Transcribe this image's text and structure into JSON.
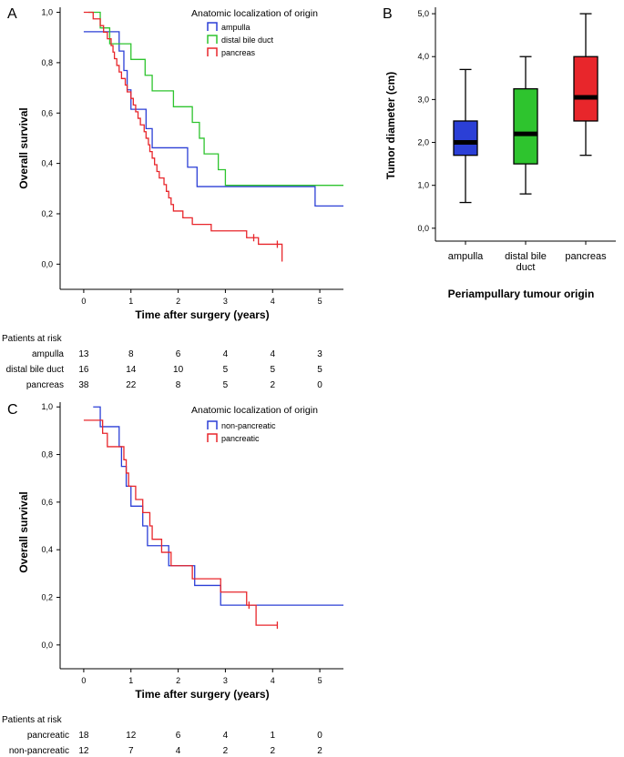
{
  "figure": {
    "panels": [
      "A",
      "B",
      "C"
    ]
  },
  "chart_data": [
    {
      "panel": "A",
      "type": "line",
      "subtype": "kaplan-meier",
      "xlabel": "Time after surgery (years)",
      "ylabel": "Overall survival",
      "xlim": [
        -0.5,
        5.5
      ],
      "ylim": [
        -0.1,
        1.02
      ],
      "xticks": [
        0,
        1,
        2,
        3,
        4,
        5
      ],
      "yticks": [
        0.0,
        0.2,
        0.4,
        0.6,
        0.8,
        1.0
      ],
      "ytick_labels": [
        "0,0",
        "0,2",
        "0,4",
        "0,6",
        "0,8",
        "1,0"
      ],
      "legend_title": "Anatomic localization of origin",
      "legend_position": "top-right",
      "series": [
        {
          "name": "ampulla",
          "color": "#2b3fd6",
          "steps": [
            [
              0,
              0.923
            ],
            [
              0.65,
              0.923
            ],
            [
              0.75,
              0.846
            ],
            [
              0.85,
              0.769
            ],
            [
              0.92,
              0.692
            ],
            [
              1.0,
              0.615
            ],
            [
              1.32,
              0.538
            ],
            [
              1.45,
              0.462
            ],
            [
              2.2,
              0.385
            ],
            [
              2.4,
              0.308
            ],
            [
              4.9,
              0.308
            ],
            [
              4.9,
              0.231
            ],
            [
              5.5,
              0.231
            ]
          ]
        },
        {
          "name": "distal bile duct",
          "color": "#2ec42e",
          "steps": [
            [
              0.1,
              1.0
            ],
            [
              0.35,
              0.938
            ],
            [
              0.55,
              0.875
            ],
            [
              1.0,
              0.813
            ],
            [
              1.3,
              0.75
            ],
            [
              1.45,
              0.688
            ],
            [
              1.9,
              0.625
            ],
            [
              2.3,
              0.563
            ],
            [
              2.45,
              0.5
            ],
            [
              2.55,
              0.438
            ],
            [
              2.85,
              0.375
            ],
            [
              3.0,
              0.313
            ],
            [
              5.5,
              0.313
            ]
          ]
        },
        {
          "name": "pancreas",
          "color": "#e8262b",
          "steps": [
            [
              0,
              1.0
            ],
            [
              0.2,
              0.974
            ],
            [
              0.35,
              0.947
            ],
            [
              0.42,
              0.921
            ],
            [
              0.5,
              0.895
            ],
            [
              0.58,
              0.868
            ],
            [
              0.62,
              0.842
            ],
            [
              0.65,
              0.816
            ],
            [
              0.7,
              0.789
            ],
            [
              0.75,
              0.763
            ],
            [
              0.8,
              0.737
            ],
            [
              0.88,
              0.711
            ],
            [
              0.92,
              0.684
            ],
            [
              1.0,
              0.658
            ],
            [
              1.05,
              0.632
            ],
            [
              1.1,
              0.605
            ],
            [
              1.15,
              0.579
            ],
            [
              1.2,
              0.553
            ],
            [
              1.28,
              0.526
            ],
            [
              1.32,
              0.5
            ],
            [
              1.37,
              0.474
            ],
            [
              1.4,
              0.447
            ],
            [
              1.45,
              0.421
            ],
            [
              1.5,
              0.395
            ],
            [
              1.55,
              0.368
            ],
            [
              1.6,
              0.342
            ],
            [
              1.7,
              0.316
            ],
            [
              1.75,
              0.289
            ],
            [
              1.8,
              0.263
            ],
            [
              1.85,
              0.237
            ],
            [
              1.9,
              0.211
            ],
            [
              2.1,
              0.184
            ],
            [
              2.3,
              0.158
            ],
            [
              2.7,
              0.132
            ],
            [
              3.45,
              0.105
            ],
            [
              3.7,
              0.079
            ],
            [
              4.2,
              0.053
            ],
            [
              4.2,
              0.01
            ]
          ],
          "censored": [
            [
              3.6,
              0.105
            ],
            [
              4.1,
              0.079
            ]
          ]
        }
      ],
      "risk_table": {
        "title": "Patients at risk",
        "times": [
          0,
          1,
          2,
          3,
          4,
          5
        ],
        "rows": [
          {
            "label": "ampulla",
            "counts": [
              "13",
              "8",
              "6",
              "4",
              "4",
              "3"
            ]
          },
          {
            "label": "distal bile duct",
            "counts": [
              "16",
              "14",
              "10",
              "5",
              "5",
              "5"
            ]
          },
          {
            "label": "pancreas",
            "counts": [
              "38",
              "22",
              "8",
              "5",
              "2",
              "0"
            ]
          }
        ]
      }
    },
    {
      "panel": "B",
      "type": "box",
      "xlabel": "Periampullary tumour origin",
      "ylabel": "Tumor diameter (cm)",
      "ylim": [
        -0.3,
        5.15
      ],
      "yticks": [
        0.0,
        1.0,
        2.0,
        3.0,
        4.0,
        5.0
      ],
      "ytick_labels": [
        "0,0",
        "1,0",
        "2,0",
        "3,0",
        "4,0",
        "5,0"
      ],
      "categories": [
        "ampulla",
        "distal bile duct",
        "pancreas"
      ],
      "category_labels": [
        [
          "ampulla"
        ],
        [
          "distal bile",
          "duct"
        ],
        [
          "pancreas"
        ]
      ],
      "boxes": [
        {
          "name": "ampulla",
          "color": "#2b3fd6",
          "min": 0.6,
          "q1": 1.7,
          "median": 2.0,
          "q3": 2.5,
          "max": 3.7
        },
        {
          "name": "distal bile duct",
          "color": "#2ec42e",
          "min": 0.8,
          "q1": 1.5,
          "median": 2.2,
          "q3": 3.25,
          "max": 4.0
        },
        {
          "name": "pancreas",
          "color": "#e8262b",
          "min": 1.7,
          "q1": 2.5,
          "median": 3.05,
          "q3": 4.0,
          "max": 5.0
        }
      ]
    },
    {
      "panel": "C",
      "type": "line",
      "subtype": "kaplan-meier",
      "xlabel": "Time after surgery (years)",
      "ylabel": "Overall survival",
      "xlim": [
        -0.5,
        5.5
      ],
      "ylim": [
        -0.1,
        1.02
      ],
      "xticks": [
        0,
        1,
        2,
        3,
        4,
        5
      ],
      "yticks": [
        0.0,
        0.2,
        0.4,
        0.6,
        0.8,
        1.0
      ],
      "ytick_labels": [
        "0,0",
        "0,2",
        "0,4",
        "0,6",
        "0,8",
        "1,0"
      ],
      "legend_title": "Anatomic localization of origin",
      "legend_position": "top-right",
      "series": [
        {
          "name": "non-pancreatic",
          "color": "#2b3fd6",
          "steps": [
            [
              0.2,
              1.0
            ],
            [
              0.35,
              0.917
            ],
            [
              0.75,
              0.833
            ],
            [
              0.8,
              0.75
            ],
            [
              0.9,
              0.667
            ],
            [
              1.0,
              0.583
            ],
            [
              1.25,
              0.5
            ],
            [
              1.35,
              0.417
            ],
            [
              1.8,
              0.333
            ],
            [
              2.35,
              0.25
            ],
            [
              2.9,
              0.167
            ],
            [
              5.5,
              0.167
            ]
          ]
        },
        {
          "name": "pancreatic",
          "color": "#e8262b",
          "steps": [
            [
              0,
              0.944
            ],
            [
              0.4,
              0.889
            ],
            [
              0.5,
              0.833
            ],
            [
              0.85,
              0.778
            ],
            [
              0.9,
              0.722
            ],
            [
              0.95,
              0.667
            ],
            [
              1.1,
              0.611
            ],
            [
              1.25,
              0.556
            ],
            [
              1.4,
              0.5
            ],
            [
              1.45,
              0.444
            ],
            [
              1.65,
              0.389
            ],
            [
              1.85,
              0.333
            ],
            [
              2.3,
              0.278
            ],
            [
              2.9,
              0.222
            ],
            [
              3.45,
              0.167
            ],
            [
              3.65,
              0.083
            ],
            [
              4.1,
              0.083
            ]
          ],
          "censored": [
            [
              3.5,
              0.167
            ],
            [
              4.1,
              0.083
            ]
          ]
        }
      ],
      "risk_table": {
        "title": "Patients at risk",
        "times": [
          0,
          1,
          2,
          3,
          4,
          5
        ],
        "rows": [
          {
            "label": "pancreatic",
            "counts": [
              "18",
              "12",
              "6",
              "4",
              "1",
              "0"
            ]
          },
          {
            "label": "non-pancreatic",
            "counts": [
              "12",
              "7",
              "4",
              "2",
              "2",
              "2"
            ]
          }
        ]
      }
    }
  ]
}
